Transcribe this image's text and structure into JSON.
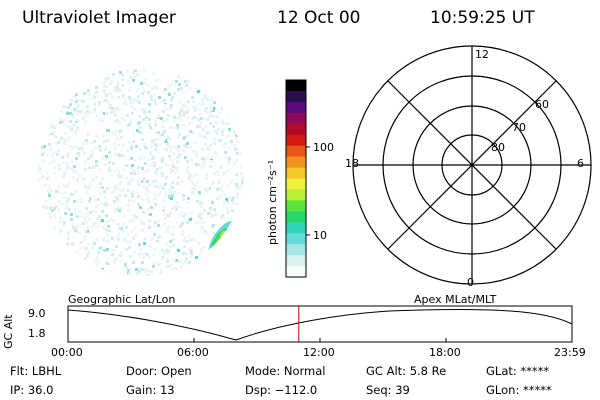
{
  "header": {
    "title": "Ultraviolet Imager",
    "date": "12 Oct 00",
    "time": "10:59:25 UT"
  },
  "colorbar": {
    "unit_label": "photon cm⁻²s⁻¹",
    "tick_labels": [
      "100",
      "10"
    ],
    "colors": [
      "#000000",
      "#2b0f4d",
      "#5a0b7c",
      "#8b0a5a",
      "#b30a2a",
      "#d41b12",
      "#e8561a",
      "#f1921e",
      "#f7c629",
      "#eef23a",
      "#b8f03a",
      "#5ee23c",
      "#28d76b",
      "#2fd4b5",
      "#63dbd8",
      "#a4e7e6",
      "#d7f1f0",
      "#f6fbfb"
    ]
  },
  "polar_plot": {
    "mlt_labels": {
      "top": "12",
      "left": "18",
      "right": "6",
      "bottom": "0"
    },
    "lat_labels": [
      "60",
      "70",
      "80"
    ]
  },
  "altitude_plot": {
    "y_axis_label": "GC Alt",
    "y_ticks": [
      "9.0",
      "1.8"
    ],
    "x_ticks": [
      "00:00",
      "06:00",
      "12:00",
      "18:00",
      "23:59"
    ],
    "left_title": "Geographic Lat/Lon",
    "right_title": "Apex MLat/MLT",
    "current_time_fraction": 0.458,
    "colors": {
      "current_marker": "#cc0000"
    }
  },
  "status": {
    "flt": "Flt: LBHL",
    "door": "Door: Open",
    "mode": "Mode: Normal",
    "gc_alt": "GC Alt: 5.8 Re",
    "glat": "GLat: *****",
    "ip": "IP: 36.0",
    "gain": "Gain: 13",
    "dsp": "Dsp: −112.0",
    "seq": "Seq: 39",
    "glon": "GLon: *****"
  }
}
